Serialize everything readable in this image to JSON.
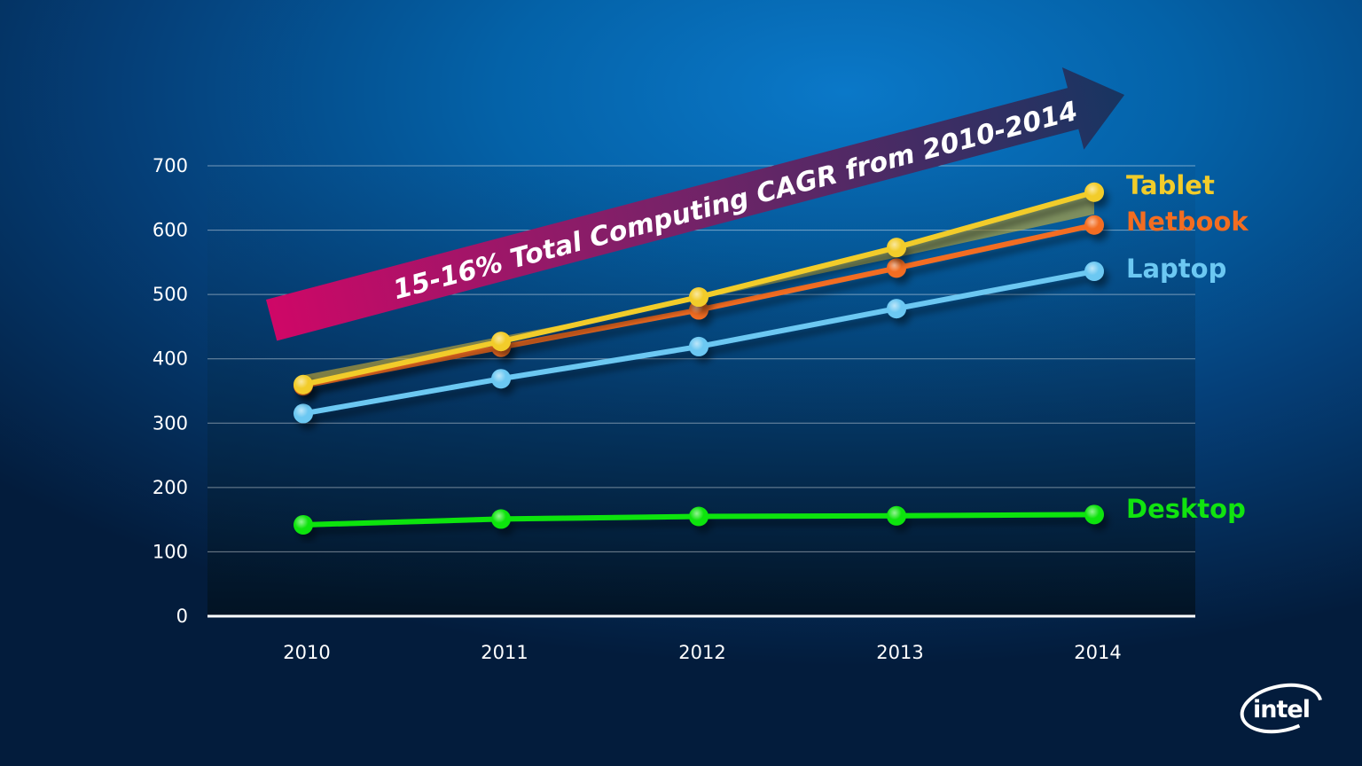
{
  "chart_data": {
    "type": "line",
    "categories": [
      "2010",
      "2011",
      "2012",
      "2013",
      "2014"
    ],
    "ylim": [
      0,
      700
    ],
    "yticks": [
      0,
      100,
      200,
      300,
      400,
      500,
      600,
      700
    ],
    "grid": true,
    "legend": "right, at line ends",
    "series": [
      {
        "name": "Tablet",
        "color": "#f2cc2a",
        "values": [
          360,
          427,
          496,
          573,
          659
        ]
      },
      {
        "name": "Netbook",
        "color": "#f36d21",
        "values": [
          358,
          418,
          476,
          541,
          608
        ]
      },
      {
        "name": "Laptop",
        "color": "#6cc8f2",
        "values": [
          315,
          369,
          419,
          478,
          536
        ]
      },
      {
        "name": "Desktop",
        "color": "#11e40f",
        "values": [
          142,
          151,
          155,
          156,
          158
        ]
      }
    ],
    "annotation": "15-16% Total Computing CAGR from 2010-2014"
  },
  "logo": "intel"
}
